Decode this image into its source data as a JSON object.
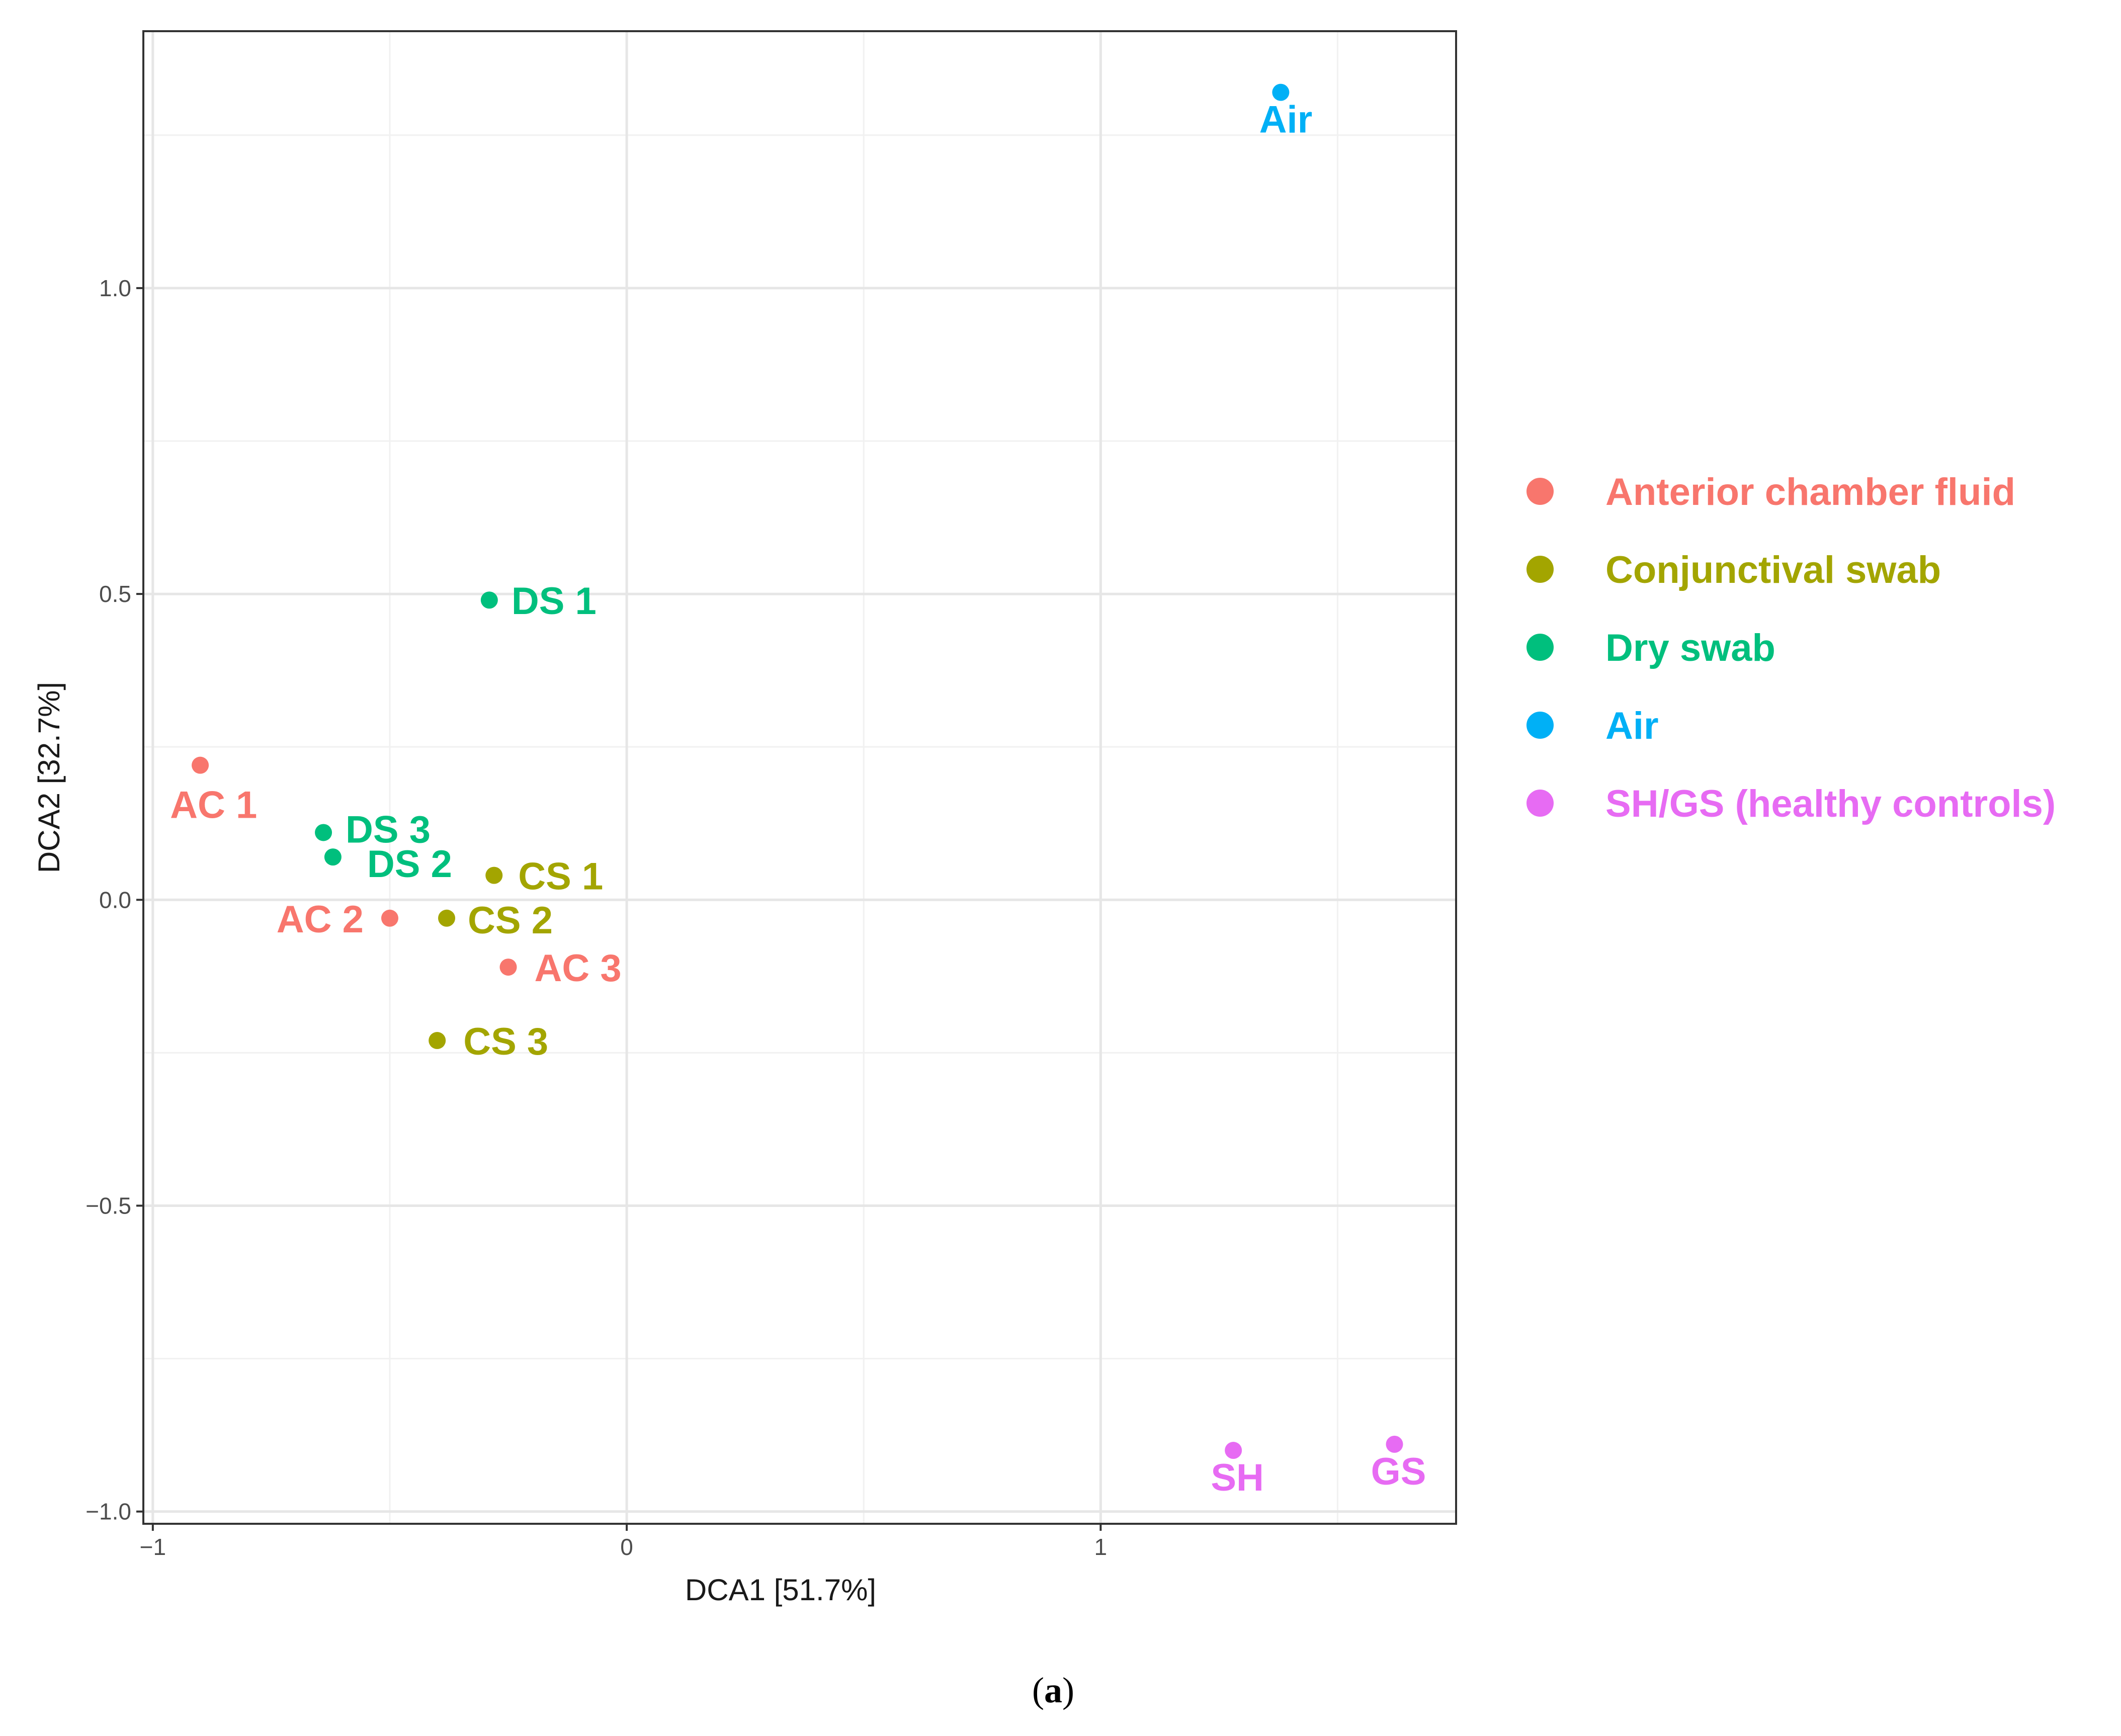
{
  "chart_data": {
    "type": "scatter",
    "title": "",
    "xlabel": "DCA1   [51.7%]",
    "ylabel": "DCA2   [32.7%]",
    "xlim": [
      -1.02,
      1.75
    ],
    "ylim": [
      -1.02,
      1.42
    ],
    "grid": true,
    "x_ticks": [
      {
        "value": -1,
        "label": "−1"
      },
      {
        "value": 0,
        "label": "0"
      },
      {
        "value": 1,
        "label": "1"
      }
    ],
    "y_ticks": [
      {
        "value": -1.0,
        "label": "−1.0"
      },
      {
        "value": -0.5,
        "label": "−0.5"
      },
      {
        "value": 0.0,
        "label": "0.0"
      },
      {
        "value": 0.5,
        "label": "0.5"
      },
      {
        "value": 1.0,
        "label": "1.0"
      }
    ],
    "legend_position": "right",
    "series": [
      {
        "name": "Anterior chamber fluid",
        "color": "#F8766D",
        "points": [
          {
            "label": "AC 1",
            "x": -0.9,
            "y": 0.22
          },
          {
            "label": "AC 2",
            "x": -0.5,
            "y": -0.03
          },
          {
            "label": "AC 3",
            "x": -0.25,
            "y": -0.11
          }
        ]
      },
      {
        "name": "Conjunctival swab",
        "color": "#A3A500",
        "points": [
          {
            "label": "CS 1",
            "x": -0.28,
            "y": 0.04
          },
          {
            "label": "CS 2",
            "x": -0.38,
            "y": -0.03
          },
          {
            "label": "CS 3",
            "x": -0.4,
            "y": -0.23
          }
        ]
      },
      {
        "name": "Dry swab",
        "color": "#00BF7D",
        "points": [
          {
            "label": "DS 1",
            "x": -0.29,
            "y": 0.49
          },
          {
            "label": "DS 3",
            "x": -0.64,
            "y": 0.11
          },
          {
            "label": "DS 2",
            "x": -0.62,
            "y": 0.07
          }
        ]
      },
      {
        "name": "Air",
        "color": "#00B0F6",
        "points": [
          {
            "label": "Air",
            "x": 1.38,
            "y": 1.32
          }
        ]
      },
      {
        "name": "SH/GS (healthy controls)",
        "color": "#E76BF3",
        "points": [
          {
            "label": "SH",
            "x": 1.28,
            "y": -0.9
          },
          {
            "label": "GS",
            "x": 1.62,
            "y": -0.89
          }
        ]
      }
    ]
  },
  "caption": {
    "open": "(",
    "letter": "a",
    "close": ")"
  }
}
